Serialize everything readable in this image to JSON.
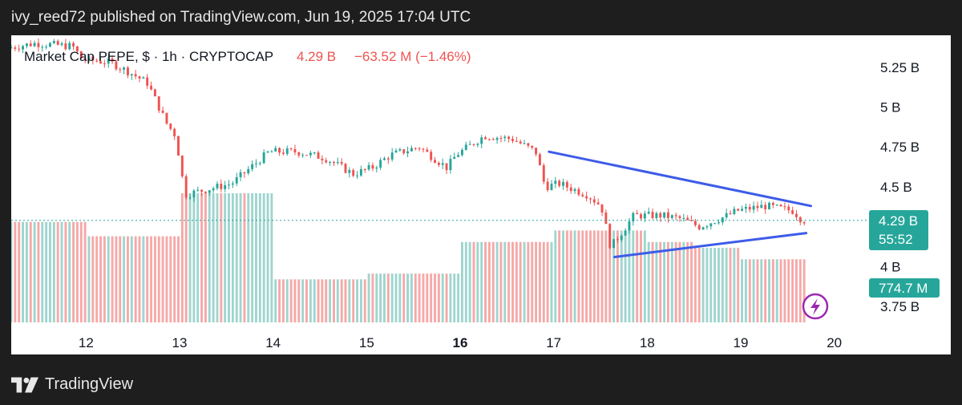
{
  "header": {
    "publish_line": "ivy_reed72 published on TradingView.com, Jun 19, 2025 17:04 UTC"
  },
  "footer": {
    "brand": "TradingView"
  },
  "colors": {
    "up": "#26a69a",
    "down": "#ef5350",
    "trendline": "#3d5ce8",
    "price_tag": "#26a69a"
  },
  "chart_data": {
    "type": "candlestick",
    "legend": {
      "symbol": "Market Cap PEPE, $ · 1h · CRYPTOCAP",
      "value": "4.29 B",
      "change": "−63.52 M (−1.46%)"
    },
    "price_axis": {
      "ticks": [
        5.25,
        5.0,
        4.75,
        4.5,
        4.0,
        3.75
      ],
      "tick_labels": [
        "5.25 B",
        "5 B",
        "4.75 B",
        "4.5 B",
        "4 B",
        "3.75 B"
      ],
      "range": [
        3.65,
        5.45
      ]
    },
    "time_axis": {
      "ticks": [
        12,
        13,
        14,
        15,
        16,
        17,
        18,
        19,
        20
      ],
      "tick_labels": [
        "12",
        "13",
        "14",
        "15",
        "16",
        "17",
        "18",
        "19",
        "20"
      ],
      "bold": [
        "16"
      ],
      "range": [
        11.2,
        20.2
      ]
    },
    "last_price": {
      "value": 4.29,
      "label": "4.29 B",
      "countdown": "55:52"
    },
    "volume_label": "774.7 M",
    "price_path": [
      [
        11.2,
        5.37
      ],
      [
        11.5,
        5.4
      ],
      [
        11.9,
        5.38
      ],
      [
        12.0,
        5.3
      ],
      [
        12.3,
        5.28
      ],
      [
        12.5,
        5.22
      ],
      [
        12.7,
        5.15
      ],
      [
        12.9,
        4.9
      ],
      [
        13.0,
        4.82
      ],
      [
        13.1,
        4.45
      ],
      [
        13.3,
        4.48
      ],
      [
        13.6,
        4.52
      ],
      [
        13.8,
        4.62
      ],
      [
        14.0,
        4.72
      ],
      [
        14.3,
        4.72
      ],
      [
        14.6,
        4.68
      ],
      [
        14.9,
        4.58
      ],
      [
        15.1,
        4.62
      ],
      [
        15.3,
        4.7
      ],
      [
        15.6,
        4.75
      ],
      [
        15.9,
        4.62
      ],
      [
        16.0,
        4.7
      ],
      [
        16.3,
        4.82
      ],
      [
        16.6,
        4.8
      ],
      [
        16.85,
        4.72
      ],
      [
        16.95,
        4.5
      ],
      [
        17.1,
        4.52
      ],
      [
        17.4,
        4.45
      ],
      [
        17.55,
        4.38
      ],
      [
        17.65,
        4.12
      ],
      [
        17.75,
        4.2
      ],
      [
        17.9,
        4.32
      ],
      [
        18.2,
        4.32
      ],
      [
        18.4,
        4.3
      ],
      [
        18.6,
        4.25
      ],
      [
        18.9,
        4.32
      ],
      [
        19.0,
        4.35
      ],
      [
        19.3,
        4.38
      ],
      [
        19.6,
        4.35
      ],
      [
        19.7,
        4.29
      ]
    ],
    "volume_levels": [
      [
        11.2,
        0.35
      ],
      [
        12.0,
        0.3
      ],
      [
        13.0,
        0.45
      ],
      [
        14.0,
        0.15
      ],
      [
        15.0,
        0.17
      ],
      [
        16.0,
        0.28
      ],
      [
        17.0,
        0.32
      ],
      [
        18.0,
        0.28
      ],
      [
        18.5,
        0.26
      ],
      [
        19.0,
        0.22
      ],
      [
        19.7,
        0.2
      ]
    ],
    "annotations": [
      {
        "type": "trendline",
        "points": [
          [
            16.95,
            4.72
          ],
          [
            19.75,
            4.38
          ]
        ]
      },
      {
        "type": "trendline",
        "points": [
          [
            17.65,
            4.06
          ],
          [
            19.7,
            4.21
          ]
        ]
      }
    ]
  }
}
